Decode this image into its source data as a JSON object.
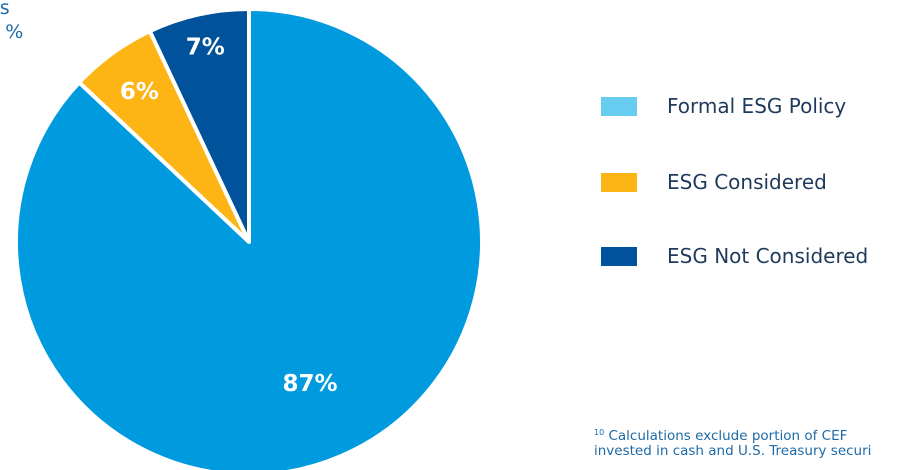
{
  "corner_label": {
    "line1": "rs",
    "line2": "y %"
  },
  "chart_data": {
    "type": "pie",
    "title": "",
    "slices": [
      {
        "name": "Formal ESG Policy",
        "value": 87,
        "label": "87%",
        "color": "#009bdf"
      },
      {
        "name": "ESG Considered",
        "value": 6,
        "label": "6%",
        "color": "#fdb515"
      },
      {
        "name": "ESG Not Considered",
        "value": 7,
        "label": "7%",
        "color": "#00539b"
      }
    ],
    "legend_position": "right"
  },
  "legend": [
    {
      "label": "Formal ESG Policy",
      "color": "#66cdf0"
    },
    {
      "label": "ESG Considered",
      "color": "#fdb515"
    },
    {
      "label": "ESG Not Considered",
      "color": "#00539b"
    }
  ],
  "footnote": {
    "mark": "10",
    "line1": "Calculations exclude portion of CEF",
    "line2": "invested in cash and U.S. Treasury securi"
  }
}
